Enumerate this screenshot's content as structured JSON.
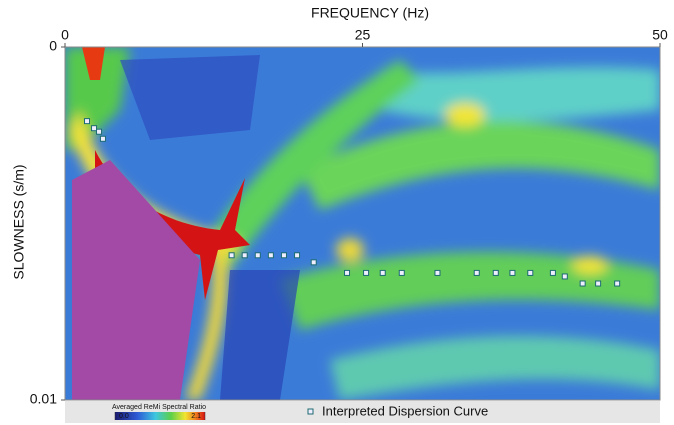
{
  "chart_data": {
    "type": "scatter",
    "title": "FREQUENCY (Hz)",
    "y_label": "SLOWNESS (s/m)",
    "xlim": [
      0,
      50
    ],
    "xticks": [
      0,
      25,
      50
    ],
    "ylim": [
      0,
      0.01
    ],
    "yticks": [
      0,
      0.01
    ],
    "y_inverted": true,
    "colorbar": {
      "label": "Averaged ReMi Spectral Ratio",
      "clim": [
        0,
        2.1
      ],
      "ticks": [
        {
          "value": 0,
          "label": "0.0"
        },
        {
          "value": 2.1,
          "label": "2.1"
        }
      ]
    },
    "series": [
      {
        "name": "Interpreted Dispersion Curve",
        "color": "#1d6b73",
        "x": [
          1.85,
          2.44,
          2.86,
          3.19,
          14.0,
          15.1,
          16.2,
          17.3,
          18.4,
          19.5,
          20.9,
          23.7,
          25.3,
          26.7,
          28.3,
          31.3,
          34.6,
          36.2,
          37.6,
          39.1,
          41.0,
          42.0,
          43.5,
          44.8,
          46.4
        ],
        "values": [
          0.0021,
          0.0023,
          0.0024,
          0.0026,
          0.0059,
          0.0059,
          0.0059,
          0.0059,
          0.0059,
          0.0059,
          0.0061,
          0.0064,
          0.0064,
          0.0064,
          0.0064,
          0.0064,
          0.0064,
          0.0064,
          0.0064,
          0.0064,
          0.0064,
          0.0065,
          0.0067,
          0.0067,
          0.0067
        ]
      }
    ]
  }
}
